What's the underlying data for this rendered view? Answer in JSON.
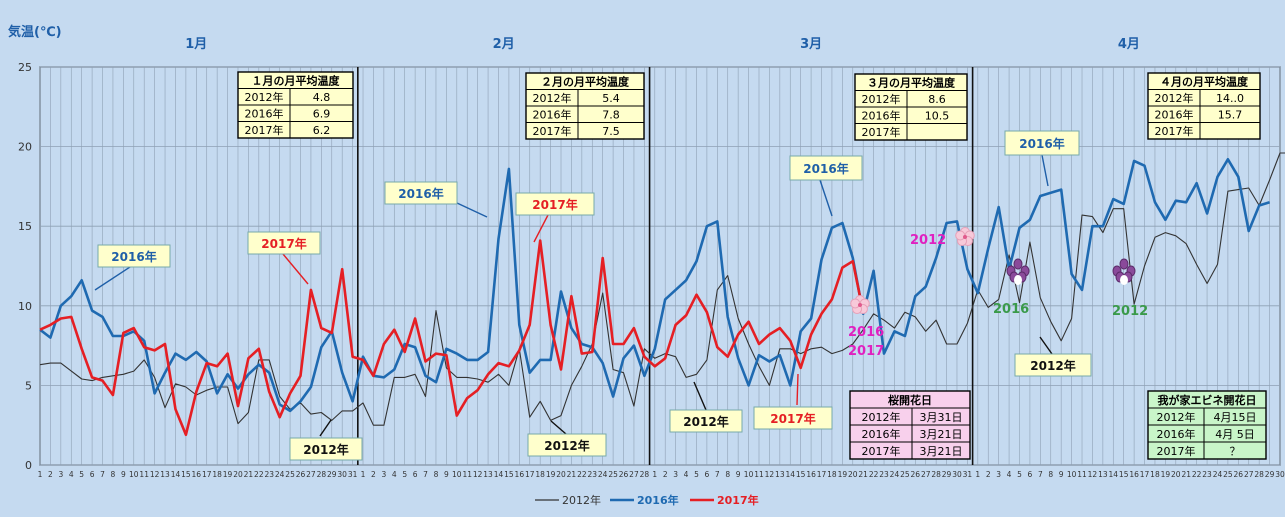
{
  "chart_data": {
    "type": "line",
    "ylabel": "気温(℃)",
    "ylim": [
      0,
      25
    ],
    "yticks": [
      0,
      5,
      10,
      15,
      20,
      25
    ],
    "grid": true,
    "legend_position": "bottom",
    "months": [
      {
        "label": "1月",
        "days": 31
      },
      {
        "label": "2月",
        "days": 28
      },
      {
        "label": "3月",
        "days": 31
      },
      {
        "label": "4月",
        "days": 30
      }
    ],
    "series": [
      {
        "name": "2012年",
        "color": "#333333",
        "values": [
          6.3,
          6.4,
          6.4,
          5.9,
          5.4,
          5.3,
          5.5,
          5.6,
          5.7,
          5.9,
          6.6,
          5.5,
          3.6,
          5.1,
          4.9,
          4.4,
          4.7,
          4.9,
          4.9,
          2.6,
          3.3,
          6.6,
          6.6,
          4.3,
          3.5,
          3.9,
          3.2,
          3.3,
          2.8,
          3.4,
          3.4,
          3.9,
          2.5,
          2.5,
          5.5,
          5.5,
          5.7,
          4.3,
          9.7,
          6.1,
          5.5,
          5.5,
          5.4,
          5.2,
          5.7,
          5.0,
          7.3,
          3.0,
          4.0,
          2.8,
          3.1,
          5.0,
          6.2,
          7.6,
          10.8,
          6.0,
          5.8,
          3.7,
          7.3,
          6.7,
          7.0,
          6.8,
          5.5,
          5.7,
          6.6,
          11.0,
          11.9,
          9.2,
          7.6,
          6.2,
          5.0,
          7.3,
          7.3,
          7.0,
          7.3,
          7.4,
          7.0,
          7.2,
          7.6,
          8.5,
          9.5,
          9.1,
          8.6,
          9.6,
          9.3,
          8.4,
          9.1,
          7.6,
          7.6,
          8.9,
          11.0,
          9.9,
          10.4,
          13.2,
          10.2,
          14.0,
          10.5,
          9.0,
          7.8,
          9.2,
          15.7,
          15.6,
          14.6,
          16.1,
          16.1,
          10.1,
          12.5,
          14.3,
          14.6,
          14.4,
          13.9,
          12.6,
          11.4,
          12.6,
          17.2,
          17.3,
          17.4,
          16.3,
          17.9,
          19.6,
          19.6
        ]
      },
      {
        "name": "2016年",
        "color": "#1f6ab1",
        "values": [
          8.5,
          8.0,
          10.0,
          10.6,
          11.6,
          9.7,
          9.3,
          8.1,
          8.1,
          8.4,
          7.8,
          4.5,
          5.8,
          7.0,
          6.6,
          7.1,
          6.5,
          4.5,
          5.7,
          4.8,
          5.7,
          6.3,
          5.8,
          3.8,
          3.4,
          4.0,
          4.9,
          7.4,
          8.4,
          5.8,
          4.0,
          6.8,
          5.6,
          5.5,
          6.0,
          7.6,
          7.4,
          5.6,
          5.2,
          7.3,
          7.0,
          6.6,
          6.6,
          7.1,
          14.2,
          18.6,
          8.8,
          5.8,
          6.6,
          6.6,
          10.9,
          8.6,
          7.6,
          7.4,
          6.4,
          4.3,
          6.7,
          7.5,
          5.6,
          7.3,
          10.4,
          11.0,
          11.6,
          12.8,
          15.0,
          15.3,
          9.3,
          6.7,
          5.0,
          6.9,
          6.5,
          6.9,
          5.0,
          8.4,
          9.2,
          12.9,
          14.9,
          15.2,
          13.0,
          9.5,
          12.2,
          7.0,
          8.4,
          8.1,
          10.6,
          11.2,
          13.0,
          15.2,
          15.3,
          12.3,
          10.8,
          13.6,
          16.2,
          12.3,
          14.9,
          15.4,
          16.9,
          17.1,
          17.3,
          12.0,
          11.0,
          15.0,
          15.0,
          16.7,
          16.4,
          19.1,
          18.8,
          16.5,
          15.4,
          16.6,
          16.5,
          17.7,
          15.8,
          18.1,
          19.2,
          18.1,
          14.7,
          16.3,
          16.5
        ]
      },
      {
        "name": "2017年",
        "color": "#e51f24",
        "values": [
          8.5,
          8.8,
          9.2,
          9.3,
          7.3,
          5.5,
          5.3,
          4.4,
          8.3,
          8.6,
          7.4,
          7.2,
          7.6,
          3.5,
          1.9,
          4.6,
          6.4,
          6.2,
          7.0,
          3.7,
          6.7,
          7.3,
          4.6,
          3.0,
          4.5,
          5.6,
          11.0,
          8.6,
          8.3,
          12.3,
          6.8,
          6.6,
          5.6,
          7.6,
          8.5,
          7.1,
          9.2,
          6.5,
          7.0,
          6.9,
          3.1,
          4.2,
          4.7,
          5.7,
          6.4,
          6.2,
          7.2,
          8.8,
          14.1,
          8.8,
          6.0,
          10.6,
          7.0,
          7.1,
          13.0,
          7.6,
          7.6,
          8.6,
          6.8,
          6.2,
          6.7,
          8.8,
          9.4,
          10.7,
          9.6,
          7.4,
          6.8,
          8.2,
          9.0,
          7.6,
          8.2,
          8.6,
          7.8,
          6.1,
          8.2,
          9.5,
          10.4,
          12.4,
          12.8,
          9.6
        ]
      }
    ],
    "monthly_avg_tables": [
      {
        "title": "１月の月平均温度",
        "rows": [
          [
            "2012年",
            "4.8"
          ],
          [
            "2016年",
            "6.9"
          ],
          [
            "2017年",
            "6.2"
          ]
        ]
      },
      {
        "title": "２月の月平均温度",
        "rows": [
          [
            "2012年",
            "5.4"
          ],
          [
            "2016年",
            "7.8"
          ],
          [
            "2017年",
            "7.5"
          ]
        ]
      },
      {
        "title": "３月の月平均温度",
        "rows": [
          [
            "2012年",
            "8.6"
          ],
          [
            "2016年",
            "10.5"
          ],
          [
            "2017年",
            ""
          ]
        ]
      },
      {
        "title": "４月の月平均温度",
        "rows": [
          [
            "2012年",
            "14..0"
          ],
          [
            "2016年",
            "15.7"
          ],
          [
            "2017年",
            ""
          ]
        ]
      }
    ],
    "sakura_table": {
      "title": "桜開花日",
      "rows": [
        [
          "2012年",
          "3月31日"
        ],
        [
          "2016年",
          "3月21日"
        ],
        [
          "2017年",
          "3月21日"
        ]
      ]
    },
    "ebine_table": {
      "title": "我が家エビネ開花日",
      "rows": [
        [
          "2012年",
          "4月15日"
        ],
        [
          "2016年",
          "4月 5日"
        ],
        [
          "2017年",
          "？"
        ]
      ]
    },
    "callouts": [
      "2016年",
      "2017年",
      "2012年",
      "2016年",
      "2017年",
      "2012年",
      "2012年",
      "2016年",
      "2017年",
      "2016年",
      "2012年"
    ],
    "flower_labels": {
      "sakura_2012": "2012",
      "sakura_2016": "2016",
      "sakura_2017": "2017",
      "ebine_2016": "2016",
      "ebine_2012": "2012"
    }
  }
}
